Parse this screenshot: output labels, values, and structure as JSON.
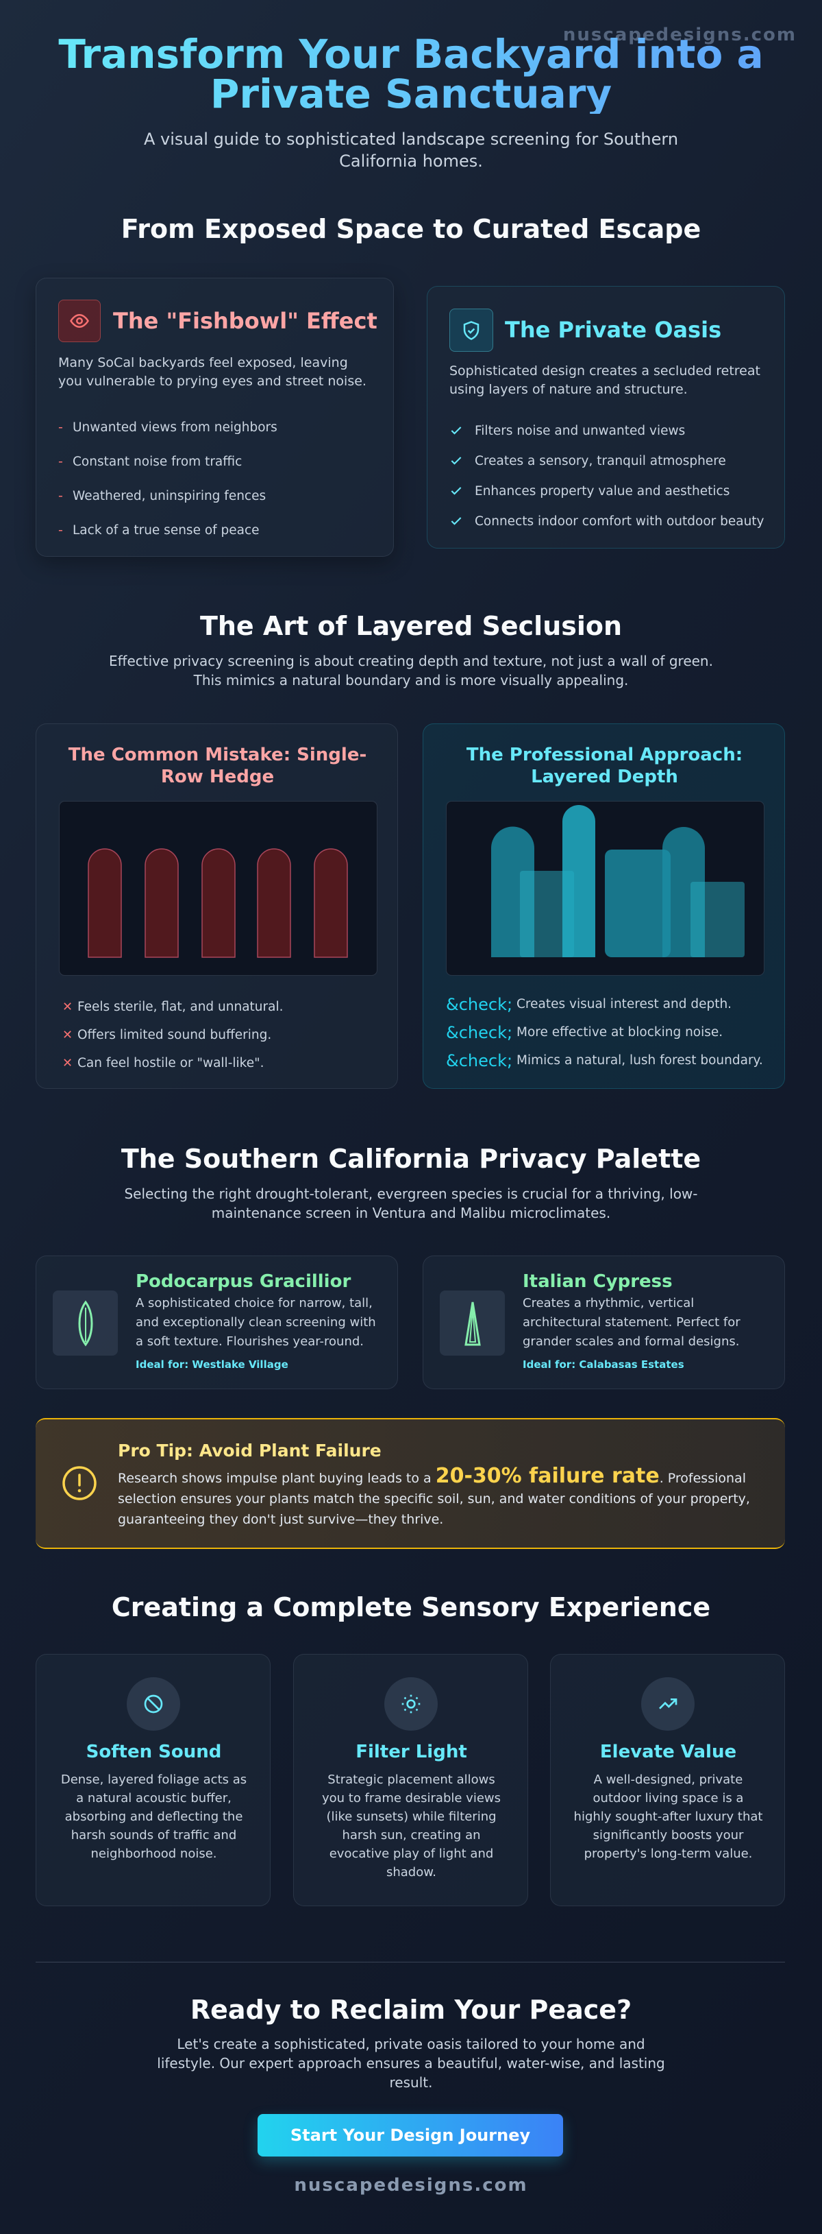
{
  "header": {
    "watermark": "nuscapedesigns.com",
    "title": "Transform Your Backyard into a Private Sanctuary",
    "subtitle": "A visual guide to sophisticated landscape screening for Southern California homes."
  },
  "contrast": {
    "heading": "From Exposed Space to Curated Escape",
    "problem": {
      "title": "The \"Fishbowl\" Effect",
      "text": "Many SoCal backyards feel exposed, leaving you vulnerable to prying eyes and street noise.",
      "marker": "-",
      "items": [
        "Unwanted views from neighbors",
        "Constant noise from traffic",
        "Weathered, uninspiring fences",
        "Lack of a true sense of peace"
      ]
    },
    "solution": {
      "title": "The Private Oasis",
      "text": "Sophisticated design creates a secluded retreat using layers of nature and structure.",
      "items": [
        "Filters noise and unwanted views",
        "Creates a sensory, tranquil atmosphere",
        "Enhances property value and aesthetics",
        "Connects indoor comfort with outdoor beauty"
      ]
    }
  },
  "layering": {
    "heading": "The Art of Layered Seclusion",
    "text": "Effective privacy screening is about creating depth and texture, not just a wall of green. This mimics a natural boundary and is more visually appealing.",
    "mistake": {
      "title": "The Common Mistake: Single-Row Hedge",
      "marker": "✕",
      "items": [
        "Feels sterile, flat, and unnatural.",
        "Offers limited sound buffering.",
        "Can feel hostile or \"wall-like\"."
      ]
    },
    "approach": {
      "title": "The Professional Approach: Layered Depth",
      "marker": "&check;",
      "items": [
        "Creates visual interest and depth.",
        "More effective at blocking noise.",
        "Mimics a natural, lush forest boundary."
      ]
    }
  },
  "palette": {
    "heading": "The Southern California Privacy Palette",
    "text": "Selecting the right drought-tolerant, evergreen species is crucial for a thriving, low-maintenance screen in Ventura and Malibu microclimates.",
    "plants": [
      {
        "name": "Podocarpus Gracillior",
        "text": "A sophisticated choice for narrow, tall, and exceptionally clean screening with a soft texture. Flourishes year-round.",
        "ideal": "Ideal for: Westlake Village"
      },
      {
        "name": "Italian Cypress",
        "text": "Creates a rhythmic, vertical architectural statement. Perfect for grander scales and formal designs.",
        "ideal": "Ideal for: Calabasas Estates"
      }
    ]
  },
  "tip": {
    "title": "Pro Tip: Avoid Plant Failure",
    "text_before": "Research shows impulse plant buying leads to a ",
    "highlight": "20-30% failure rate",
    "text_after": ". Professional selection ensures your plants match the specific soil, sun, and water conditions of your property, guaranteeing they don't just survive—they thrive."
  },
  "sensory": {
    "heading": "Creating a Complete Sensory Experience",
    "cards": [
      {
        "title": "Soften Sound",
        "text": "Dense, layered foliage acts as a natural acoustic buffer, absorbing and deflecting the harsh sounds of traffic and neighborhood noise."
      },
      {
        "title": "Filter Light",
        "text": "Strategic placement allows you to frame desirable views (like sunsets) while filtering harsh sun, creating an evocative play of light and shadow."
      },
      {
        "title": "Elevate Value",
        "text": "A well-designed, private outdoor living space is a highly sought-after luxury that significantly boosts your property's long-term value."
      }
    ]
  },
  "cta": {
    "heading": "Ready to Reclaim Your Peace?",
    "text": "Let's create a sophisticated, private oasis tailored to your home and lifestyle. Our expert approach ensures a beautiful, water-wise, and lasting result.",
    "button": "Start Your Design Journey"
  },
  "footer": {
    "site": "nuscapedesigns.com"
  }
}
